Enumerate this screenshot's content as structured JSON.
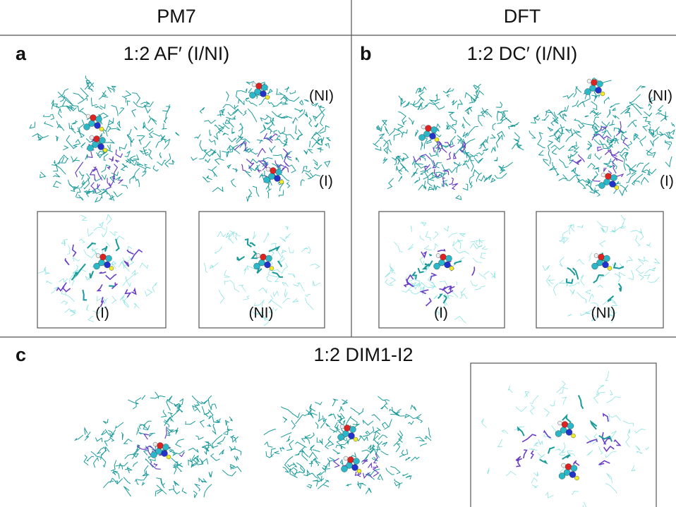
{
  "header": {
    "left": "PM7",
    "right": "DFT"
  },
  "panels": [
    {
      "letter": "a",
      "title": "1:2 AF′ (I/NI)",
      "labels": [
        "(NI)",
        "(I)"
      ],
      "insets": [
        "(I)",
        "(NI)"
      ]
    },
    {
      "letter": "b",
      "title": "1:2 DC′ (I/NI)",
      "labels": [
        "(NI)",
        "(I)"
      ],
      "insets": [
        "(I)",
        "(NI)"
      ]
    },
    {
      "letter": "c",
      "title": "1:2 DIM1-I2"
    }
  ]
}
